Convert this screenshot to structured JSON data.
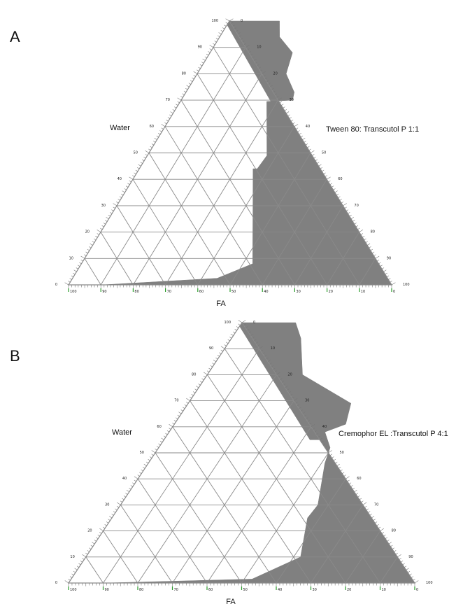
{
  "chart_data": [
    {
      "type": "ternary",
      "panel_label": "A",
      "axis_labels": {
        "left": "Water",
        "right": "Tween 80: Transcutol P  1:1",
        "bottom": "FA"
      },
      "tick_values": [
        0,
        10,
        20,
        30,
        40,
        50,
        60,
        70,
        80,
        90,
        100
      ],
      "grid": true,
      "region_color": "#808080",
      "region_description": "microemulsion region (shaded)"
    },
    {
      "type": "ternary",
      "panel_label": "B",
      "axis_labels": {
        "left": "Water",
        "right": "Cremophor EL :Transcutol P 4:1",
        "bottom": "FA"
      },
      "tick_values": [
        0,
        10,
        20,
        30,
        40,
        50,
        60,
        70,
        80,
        90,
        100
      ],
      "grid": true,
      "region_color": "#808080",
      "region_description": "microemulsion region (shaded)"
    }
  ]
}
